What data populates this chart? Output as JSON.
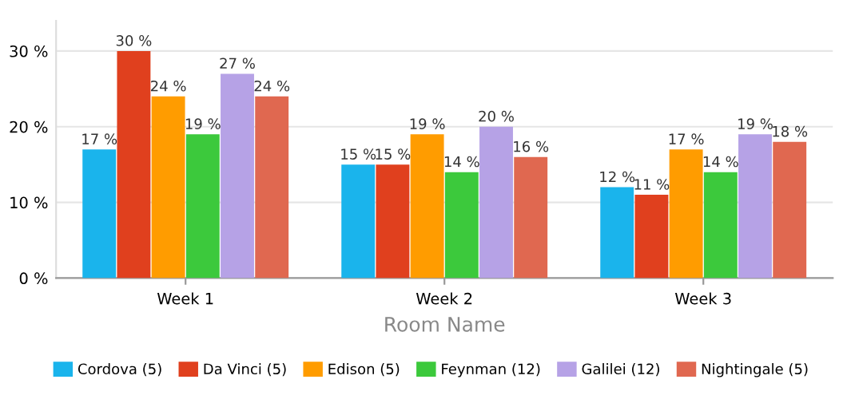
{
  "chart_data": {
    "type": "bar",
    "xlabel": "Room Name",
    "categories": [
      "Week 1",
      "Week 2",
      "Week 3"
    ],
    "series": [
      {
        "name": "Cordova (5)",
        "color": "#1ab4ec",
        "values": [
          17,
          15,
          12
        ],
        "value_labels": [
          "17 %",
          "15 %",
          "12 %"
        ]
      },
      {
        "name": "Da Vinci (5)",
        "color": "#e0401e",
        "values": [
          30,
          15,
          11
        ],
        "value_labels": [
          "30 %",
          "15 %",
          "11 %"
        ]
      },
      {
        "name": "Edison (5)",
        "color": "#ff9c00",
        "values": [
          24,
          19,
          17
        ],
        "value_labels": [
          "24 %",
          "19 %",
          "17 %"
        ]
      },
      {
        "name": "Feynman (12)",
        "color": "#3cc93c",
        "values": [
          19,
          14,
          14
        ],
        "value_labels": [
          "19 %",
          "14 %",
          "14 %"
        ]
      },
      {
        "name": "Galilei (12)",
        "color": "#b6a2e6",
        "values": [
          27,
          20,
          19
        ],
        "value_labels": [
          "27 %",
          "20 %",
          "19 %"
        ]
      },
      {
        "name": "Nightingale (5)",
        "color": "#e06850",
        "values": [
          24,
          16,
          18
        ],
        "value_labels": [
          "24 %",
          "16 %",
          "18 %"
        ]
      }
    ],
    "ylim": [
      0,
      34
    ],
    "yticks": [
      {
        "value": 0,
        "label": "0 %"
      },
      {
        "value": 10,
        "label": "10 %"
      },
      {
        "value": 20,
        "label": "20 %"
      },
      {
        "value": 30,
        "label": "30 %"
      }
    ],
    "grid": "y",
    "legend": "bottom"
  }
}
